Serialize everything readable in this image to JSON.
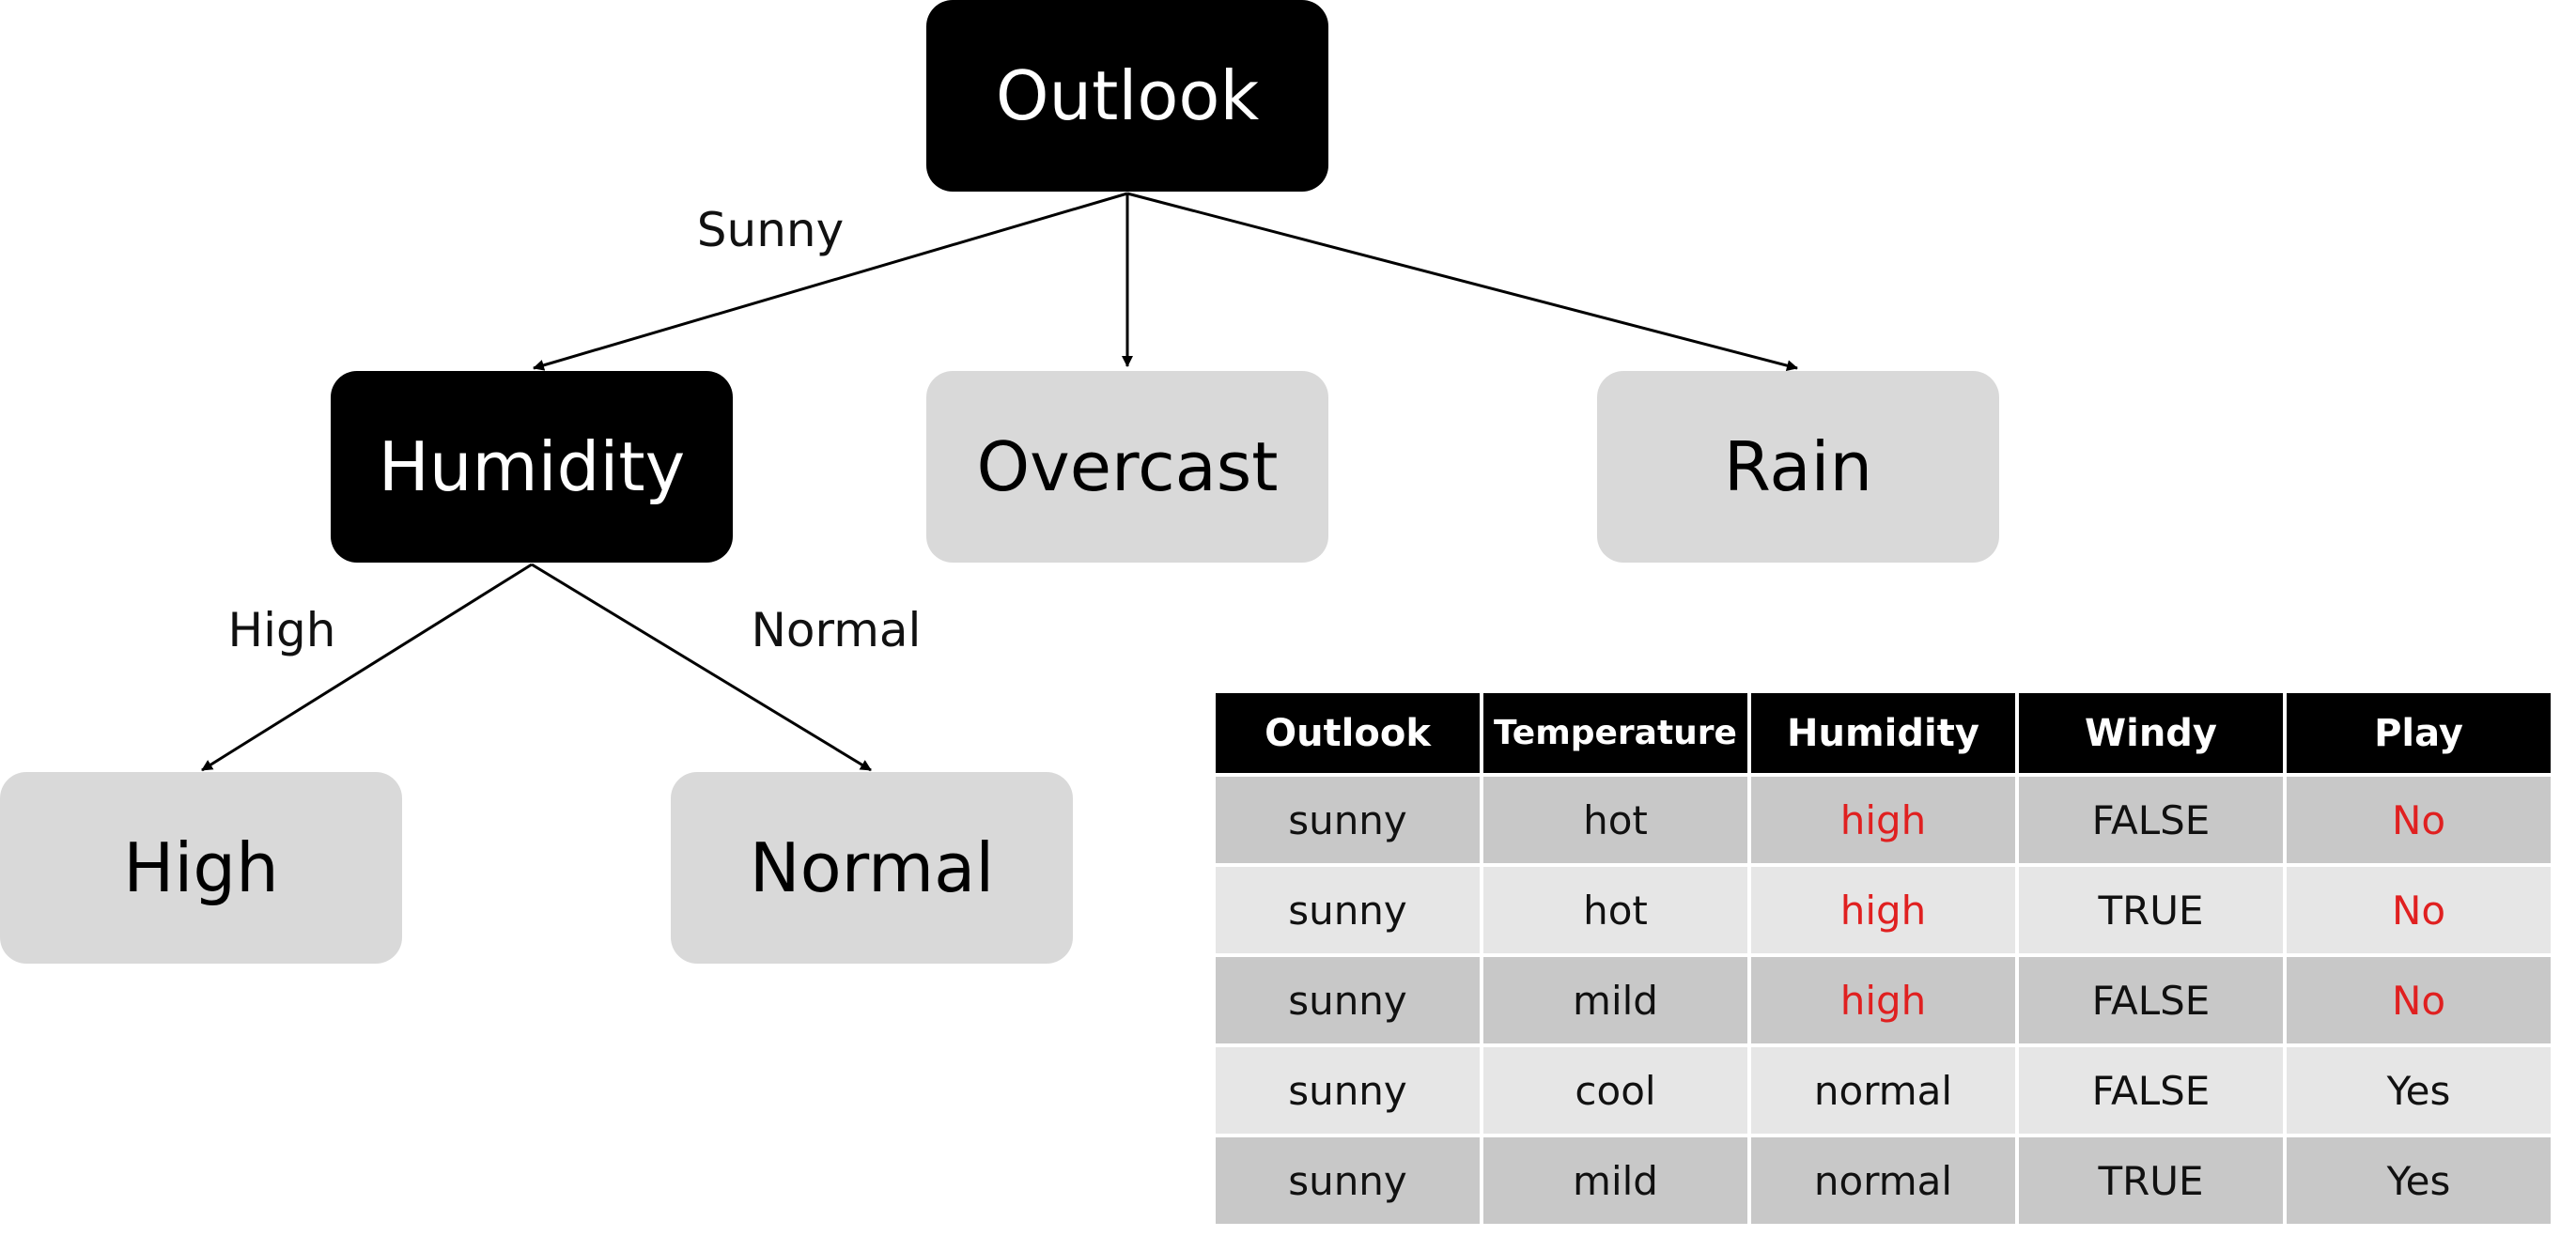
{
  "tree": {
    "root": {
      "label": "Outlook",
      "style": "dark"
    },
    "level1": [
      {
        "label": "Humidity",
        "style": "dark",
        "edge_label": "Sunny"
      },
      {
        "label": "Overcast",
        "style": "light",
        "edge_label": ""
      },
      {
        "label": "Rain",
        "style": "light",
        "edge_label": ""
      }
    ],
    "level2": [
      {
        "label": "High",
        "style": "light",
        "edge_label": "High"
      },
      {
        "label": "Normal",
        "style": "light",
        "edge_label": "Normal"
      }
    ]
  },
  "table": {
    "columns": [
      "Outlook",
      "Temperature",
      "Humidity",
      "Windy",
      "Play"
    ],
    "rows": [
      [
        "sunny",
        "hot",
        "high",
        "FALSE",
        "No"
      ],
      [
        "sunny",
        "hot",
        "high",
        "TRUE",
        "No"
      ],
      [
        "sunny",
        "mild",
        "high",
        "FALSE",
        "No"
      ],
      [
        "sunny",
        "cool",
        "normal",
        "FALSE",
        "Yes"
      ],
      [
        "sunny",
        "mild",
        "normal",
        "TRUE",
        "Yes"
      ]
    ],
    "highlighted_cells": [
      [
        0,
        2
      ],
      [
        0,
        4
      ],
      [
        1,
        2
      ],
      [
        1,
        4
      ],
      [
        2,
        2
      ],
      [
        2,
        4
      ]
    ]
  },
  "colors": {
    "dark_node": "#000000",
    "light_node": "#d9d9d9",
    "highlight_text": "#e02020",
    "row_dark": "#c8c8c8",
    "row_light": "#e6e6e6"
  }
}
